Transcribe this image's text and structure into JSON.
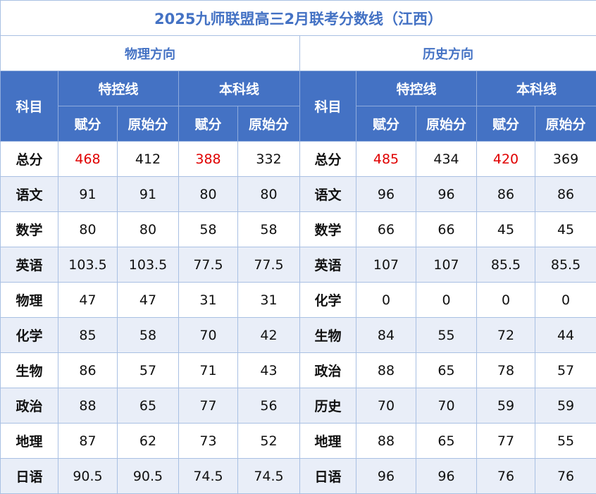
{
  "title": "2025九师联盟高三2月联考分数线（江西）",
  "directions": [
    "物理方向",
    "历史方向"
  ],
  "headers": {
    "subject": "科目",
    "groups": [
      "特控线",
      "本科线"
    ],
    "sub": [
      "赋分",
      "原始分"
    ]
  },
  "accent_color": "#4472c4",
  "highlight_color": "#e00000",
  "physics_rows": [
    {
      "subject": "总分",
      "v": [
        "468",
        "412",
        "388",
        "332"
      ]
    },
    {
      "subject": "语文",
      "v": [
        "91",
        "91",
        "80",
        "80"
      ]
    },
    {
      "subject": "数学",
      "v": [
        "80",
        "80",
        "58",
        "58"
      ]
    },
    {
      "subject": "英语",
      "v": [
        "103.5",
        "103.5",
        "77.5",
        "77.5"
      ]
    },
    {
      "subject": "物理",
      "v": [
        "47",
        "47",
        "31",
        "31"
      ]
    },
    {
      "subject": "化学",
      "v": [
        "85",
        "58",
        "70",
        "42"
      ]
    },
    {
      "subject": "生物",
      "v": [
        "86",
        "57",
        "71",
        "43"
      ]
    },
    {
      "subject": "政治",
      "v": [
        "88",
        "65",
        "77",
        "56"
      ]
    },
    {
      "subject": "地理",
      "v": [
        "87",
        "62",
        "73",
        "52"
      ]
    },
    {
      "subject": "日语",
      "v": [
        "90.5",
        "90.5",
        "74.5",
        "74.5"
      ]
    }
  ],
  "history_rows": [
    {
      "subject": "总分",
      "v": [
        "485",
        "434",
        "420",
        "369"
      ]
    },
    {
      "subject": "语文",
      "v": [
        "96",
        "96",
        "86",
        "86"
      ]
    },
    {
      "subject": "数学",
      "v": [
        "66",
        "66",
        "45",
        "45"
      ]
    },
    {
      "subject": "英语",
      "v": [
        "107",
        "107",
        "85.5",
        "85.5"
      ]
    },
    {
      "subject": "化学",
      "v": [
        "0",
        "0",
        "0",
        "0"
      ]
    },
    {
      "subject": "生物",
      "v": [
        "84",
        "55",
        "72",
        "44"
      ]
    },
    {
      "subject": "政治",
      "v": [
        "88",
        "65",
        "78",
        "57"
      ]
    },
    {
      "subject": "历史",
      "v": [
        "70",
        "70",
        "59",
        "59"
      ]
    },
    {
      "subject": "地理",
      "v": [
        "88",
        "65",
        "77",
        "55"
      ]
    },
    {
      "subject": "日语",
      "v": [
        "96",
        "96",
        "76",
        "76"
      ]
    }
  ]
}
